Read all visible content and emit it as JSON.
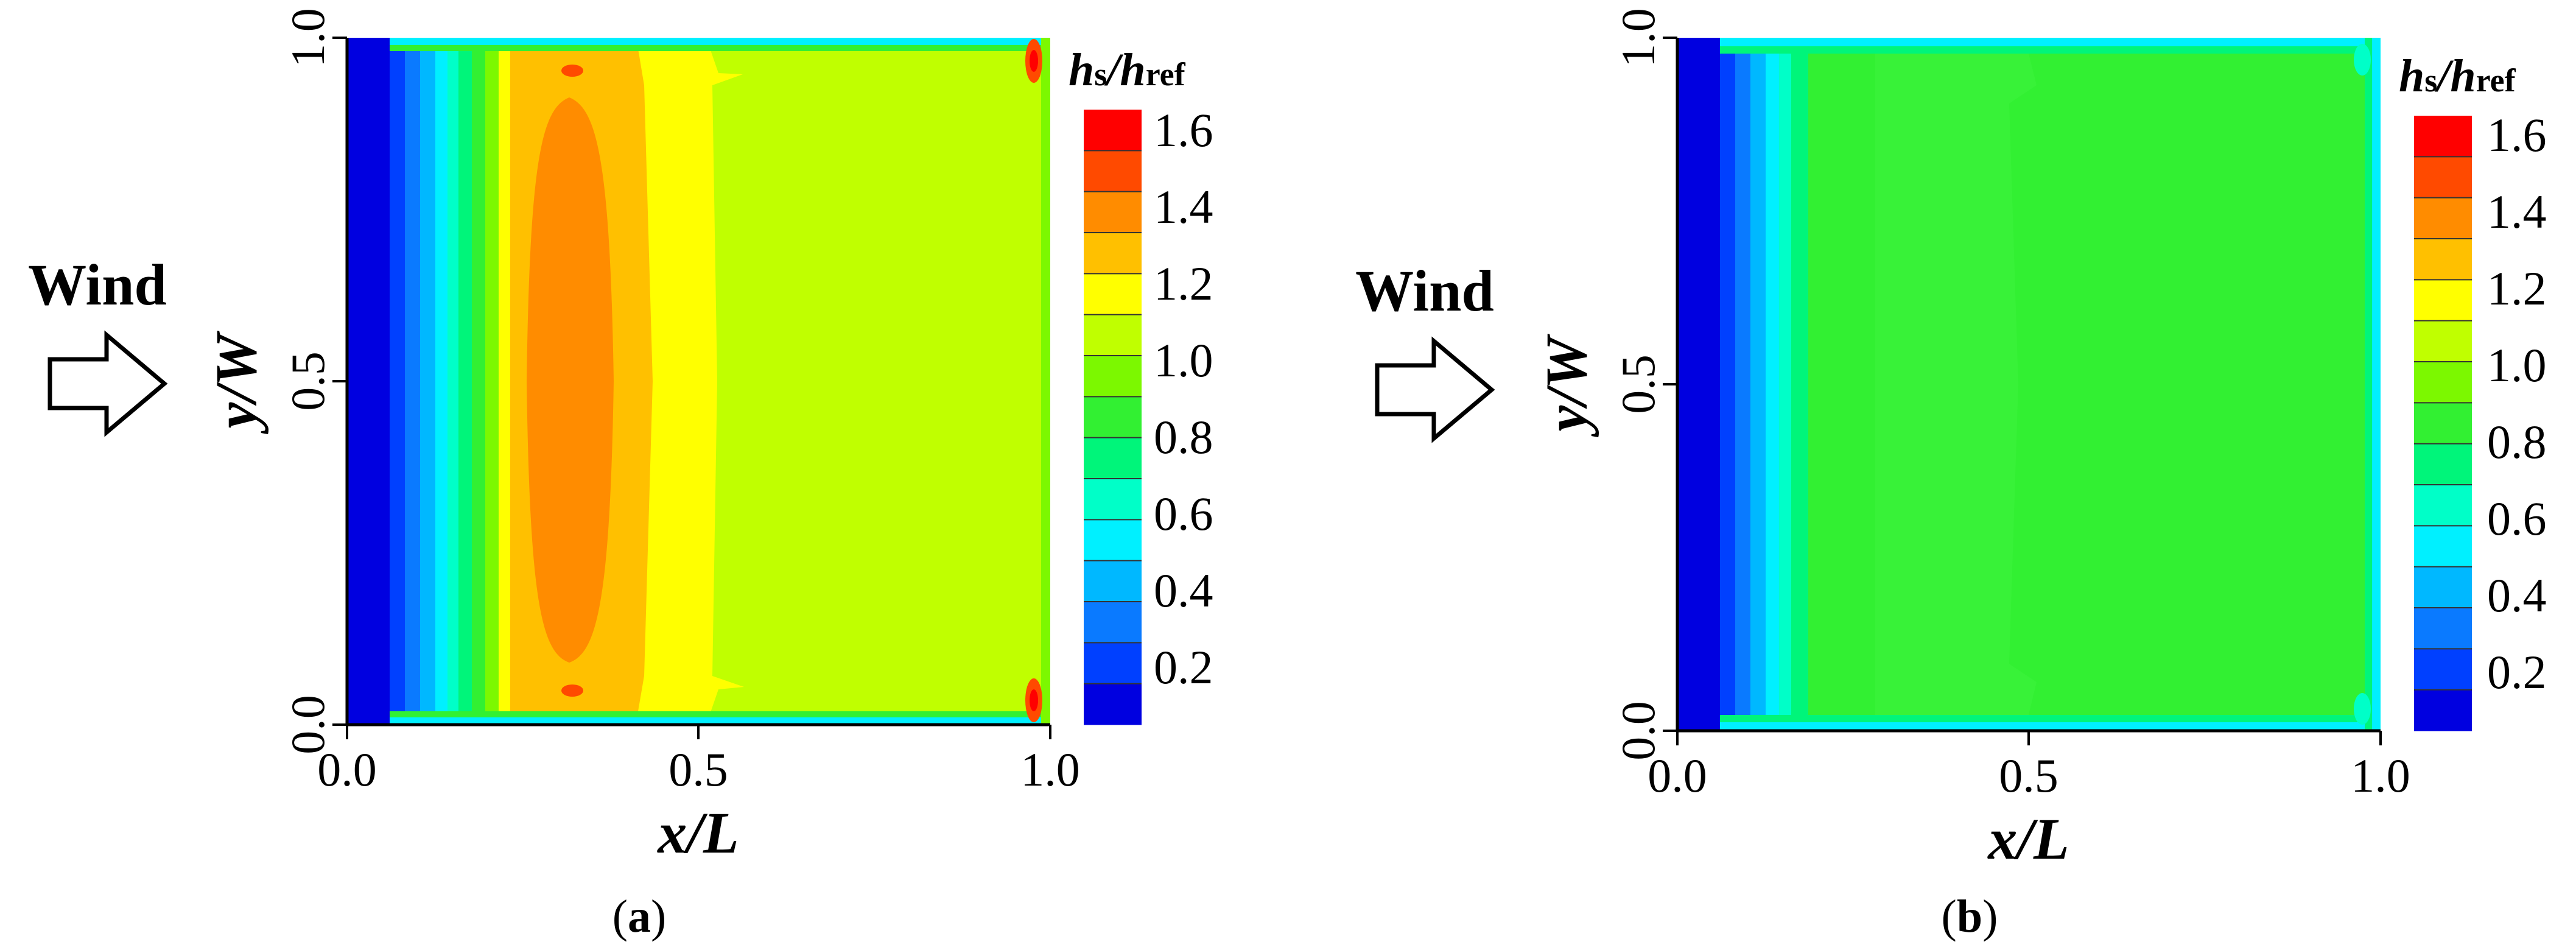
{
  "chart_data": [
    {
      "type": "heatmap",
      "panel_label": "(a)",
      "panel_letter": "a",
      "xlabel": "x/L",
      "ylabel": "y/W",
      "xlim": [
        0.0,
        1.0
      ],
      "ylim": [
        0.0,
        1.0
      ],
      "x_ticks": [
        "0.0",
        "0.5",
        "1.0"
      ],
      "y_ticks": [
        "0.0",
        "0.5",
        "1.0"
      ],
      "wind_label": "Wind",
      "colorbar_title": "hs/href",
      "colorbar_ticks": [
        "0.2",
        "0.4",
        "0.6",
        "0.8",
        "1.0",
        "1.2",
        "1.4",
        "1.6"
      ],
      "x": [
        0.0,
        0.03,
        0.07,
        0.1,
        0.13,
        0.16,
        0.2,
        0.25,
        0.3,
        0.35,
        0.4,
        0.45,
        0.5,
        0.6,
        0.7,
        0.8,
        0.9,
        0.97,
        1.0
      ],
      "values_at_mid_height": [
        0.05,
        0.15,
        0.3,
        0.45,
        0.6,
        0.85,
        1.2,
        1.45,
        1.48,
        1.48,
        1.45,
        1.35,
        1.2,
        1.12,
        1.12,
        1.12,
        1.12,
        1.12,
        0.95
      ],
      "notes": [
        "hot spots 1.6 near corners x=1.0, y=0 and y=1"
      ]
    },
    {
      "type": "heatmap",
      "panel_label": "(b)",
      "panel_letter": "b",
      "xlabel": "x/L",
      "ylabel": "y/W",
      "xlim": [
        0.0,
        1.0
      ],
      "ylim": [
        0.0,
        1.0
      ],
      "x_ticks": [
        "0.0",
        "0.5",
        "1.0"
      ],
      "y_ticks": [
        "0.0",
        "0.5",
        "1.0"
      ],
      "wind_label": "Wind",
      "colorbar_title": "hs/href",
      "colorbar_ticks": [
        "0.2",
        "0.4",
        "0.6",
        "0.8",
        "1.0",
        "1.2",
        "1.4",
        "1.6"
      ],
      "x": [
        0.0,
        0.03,
        0.07,
        0.1,
        0.13,
        0.16,
        0.2,
        0.25,
        0.3,
        0.4,
        0.5,
        0.6,
        0.8,
        0.97,
        1.0
      ],
      "values_at_mid_height": [
        0.05,
        0.15,
        0.3,
        0.45,
        0.55,
        0.65,
        0.8,
        0.85,
        0.9,
        0.9,
        0.88,
        0.85,
        0.85,
        0.85,
        0.7
      ],
      "notes": [
        "light blue edge band around the upper, lower and right boundaries"
      ]
    }
  ],
  "colors": {
    "levels": [
      "#0000e0",
      "#0040ff",
      "#0a7aff",
      "#00b8ff",
      "#00f0ff",
      "#00ffc8",
      "#00f57a",
      "#32f032",
      "#7cf800",
      "#c0ff00",
      "#ffff00",
      "#ffc000",
      "#ff8c00",
      "#ff4a00",
      "#ff0000"
    ]
  }
}
